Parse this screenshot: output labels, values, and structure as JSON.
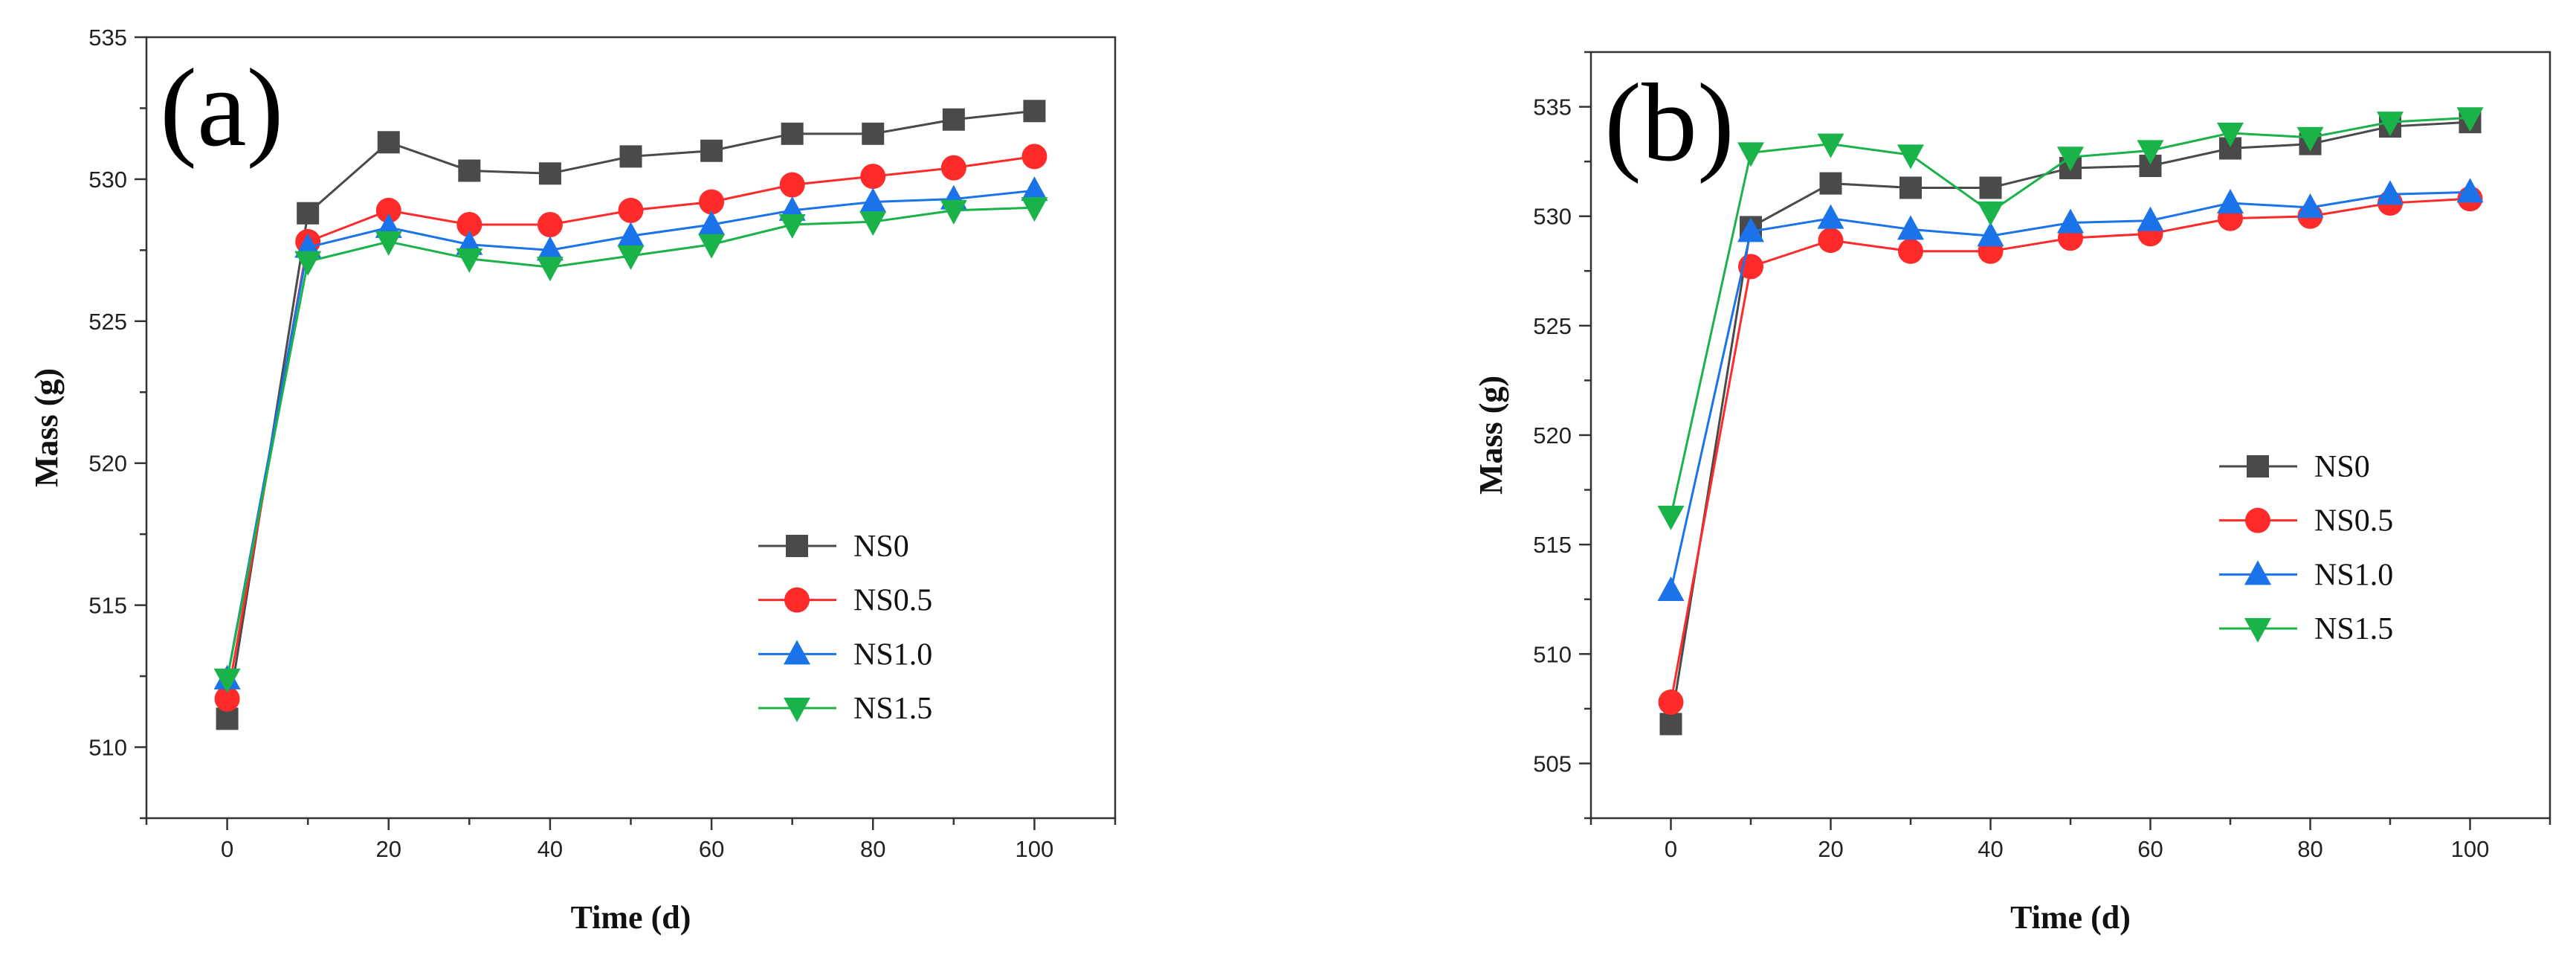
{
  "colors": {
    "NS0": "#4a4a4a",
    "NS0.5": "#ff2a2a",
    "NS1.0": "#1a73e8",
    "NS1.5": "#1ab34a"
  },
  "chart_data": [
    {
      "type": "line",
      "panel_label": "(a)",
      "xlabel": "Time (d)",
      "ylabel": "Mass (g)",
      "xlim": [
        -10,
        110
      ],
      "ylim": [
        507.5,
        535
      ],
      "xticks": [
        0,
        20,
        40,
        60,
        80,
        100
      ],
      "yticks": [
        510,
        515,
        520,
        525,
        530,
        535
      ],
      "x": [
        0,
        10,
        20,
        30,
        40,
        50,
        60,
        70,
        80,
        90,
        100
      ],
      "legend_position": "lower-right",
      "series": [
        {
          "name": "NS0",
          "marker": "square",
          "values": [
            511.0,
            528.8,
            531.3,
            530.3,
            530.2,
            530.8,
            531.0,
            531.6,
            531.6,
            532.1,
            532.4
          ]
        },
        {
          "name": "NS0.5",
          "marker": "circle",
          "values": [
            511.7,
            527.8,
            528.9,
            528.4,
            528.4,
            528.9,
            529.2,
            529.8,
            530.1,
            530.4,
            530.8
          ]
        },
        {
          "name": "NS1.0",
          "marker": "triangle-up",
          "values": [
            512.4,
            527.6,
            528.3,
            527.7,
            527.5,
            528.0,
            528.4,
            528.9,
            529.2,
            529.3,
            529.6
          ]
        },
        {
          "name": "NS1.5",
          "marker": "triangle-down",
          "values": [
            512.4,
            527.1,
            527.8,
            527.2,
            526.9,
            527.3,
            527.7,
            528.4,
            528.5,
            528.9,
            529.0
          ]
        }
      ]
    },
    {
      "type": "line",
      "panel_label": "(b)",
      "xlabel": "Time (d)",
      "ylabel": "Mass (g)",
      "xlim": [
        -10,
        110
      ],
      "ylim": [
        502.5,
        537.5
      ],
      "xticks": [
        0,
        20,
        40,
        60,
        80,
        100
      ],
      "yticks": [
        505,
        510,
        515,
        520,
        525,
        530,
        535
      ],
      "x": [
        0,
        10,
        20,
        30,
        40,
        50,
        60,
        70,
        80,
        90,
        100
      ],
      "legend_position": "center-right",
      "series": [
        {
          "name": "NS0",
          "marker": "square",
          "values": [
            506.8,
            529.5,
            531.5,
            531.3,
            531.3,
            532.2,
            532.3,
            533.1,
            533.3,
            534.1,
            534.3
          ]
        },
        {
          "name": "NS0.5",
          "marker": "circle",
          "values": [
            507.8,
            527.7,
            528.9,
            528.4,
            528.4,
            529.0,
            529.2,
            529.9,
            530.0,
            530.6,
            530.8
          ]
        },
        {
          "name": "NS1.0",
          "marker": "triangle-up",
          "values": [
            512.9,
            529.3,
            529.9,
            529.4,
            529.1,
            529.7,
            529.8,
            530.6,
            530.4,
            531.0,
            531.1
          ]
        },
        {
          "name": "NS1.5",
          "marker": "triangle-down",
          "values": [
            516.3,
            532.9,
            533.3,
            532.8,
            530.2,
            532.7,
            533.0,
            533.8,
            533.6,
            534.3,
            534.5
          ]
        }
      ]
    }
  ]
}
